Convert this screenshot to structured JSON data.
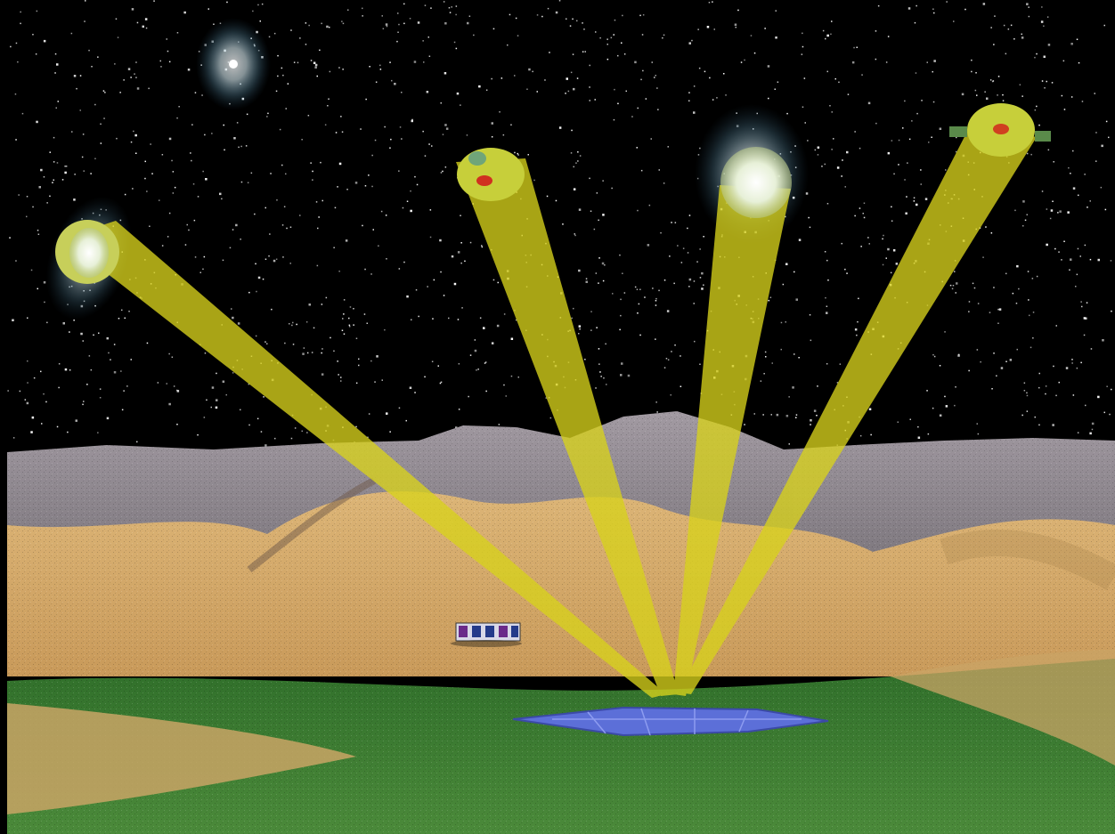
{
  "scene": {
    "colors": {
      "sky": "#000000",
      "star": "#ffffff",
      "beam": "#d8d21c",
      "rock": "#8f8a8e",
      "sand": "#d6ad6a",
      "grass": "#3e7a2e",
      "rectenna": "#5c6fd8",
      "galaxy_glow": "#9cc6d8"
    },
    "beams_count": 4
  }
}
